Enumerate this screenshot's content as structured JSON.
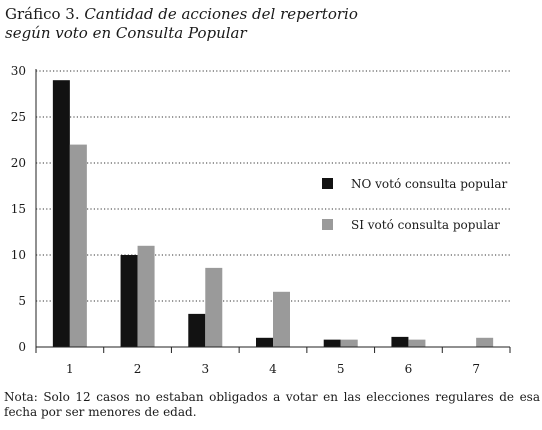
{
  "title": {
    "lead": "Gráfico  3.",
    "line1": "Cantidad de acciones del repertorio",
    "line2": "según voto en Consulta Popular"
  },
  "chart_data": {
    "type": "bar",
    "categories": [
      "1",
      "2",
      "3",
      "4",
      "5",
      "6",
      "7"
    ],
    "series": [
      {
        "name": "NO votó consulta popular",
        "color": "#121212",
        "values": [
          29,
          10,
          3.6,
          1,
          0.8,
          1.1,
          0
        ]
      },
      {
        "name": "SI votó consulta popular",
        "color": "#9a9a9a",
        "values": [
          22,
          11,
          8.6,
          6,
          0.8,
          0.8,
          1
        ]
      }
    ],
    "yticks": [
      0,
      5,
      10,
      15,
      20,
      25,
      30
    ],
    "ylim": [
      0,
      30
    ],
    "grid": true,
    "legend": "right"
  },
  "note": "Nota: Solo 12 casos no estaban obligados a votar en las elecciones  regulares de esa fecha por ser menores de edad."
}
